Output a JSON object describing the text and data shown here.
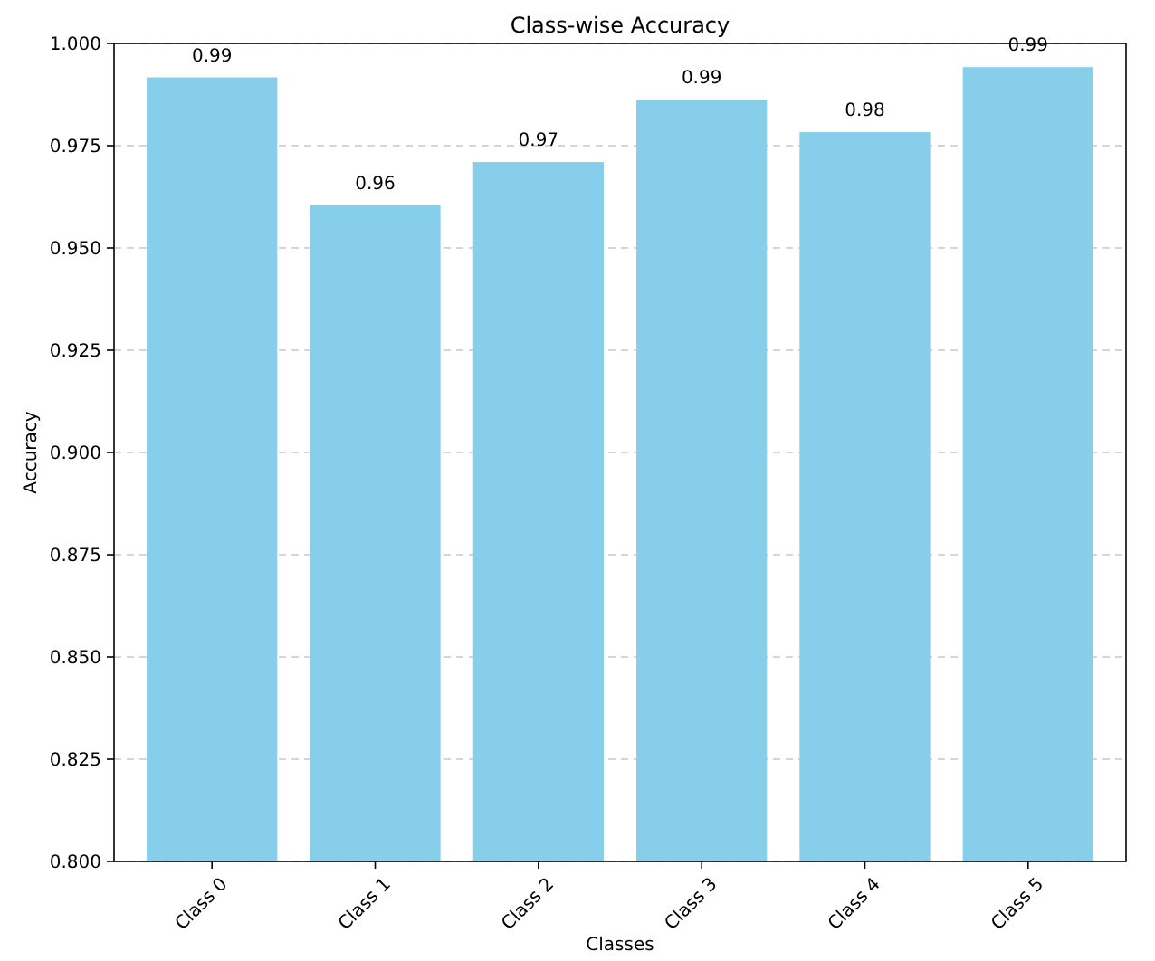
{
  "chart_data": {
    "type": "bar",
    "title": "Class-wise Accuracy",
    "xlabel": "Classes",
    "ylabel": "Accuracy",
    "categories": [
      "Class 0",
      "Class 1",
      "Class 2",
      "Class 3",
      "Class 4",
      "Class 5"
    ],
    "values": [
      0.9917,
      0.9605,
      0.971,
      0.9862,
      0.9783,
      0.9942
    ],
    "value_labels": [
      "0.99",
      "0.96",
      "0.97",
      "0.99",
      "0.98",
      "0.99"
    ],
    "color": "#87ceeb",
    "ylim": [
      0.8,
      1.0
    ],
    "yticks": [
      {
        "value": 0.8,
        "label": "0.800"
      },
      {
        "value": 0.825,
        "label": "0.825"
      },
      {
        "value": 0.85,
        "label": "0.850"
      },
      {
        "value": 0.875,
        "label": "0.875"
      },
      {
        "value": 0.9,
        "label": "0.900"
      },
      {
        "value": 0.925,
        "label": "0.925"
      },
      {
        "value": 0.95,
        "label": "0.950"
      },
      {
        "value": 0.975,
        "label": "0.975"
      },
      {
        "value": 1.0,
        "label": "1.000"
      }
    ],
    "grid": "y"
  }
}
